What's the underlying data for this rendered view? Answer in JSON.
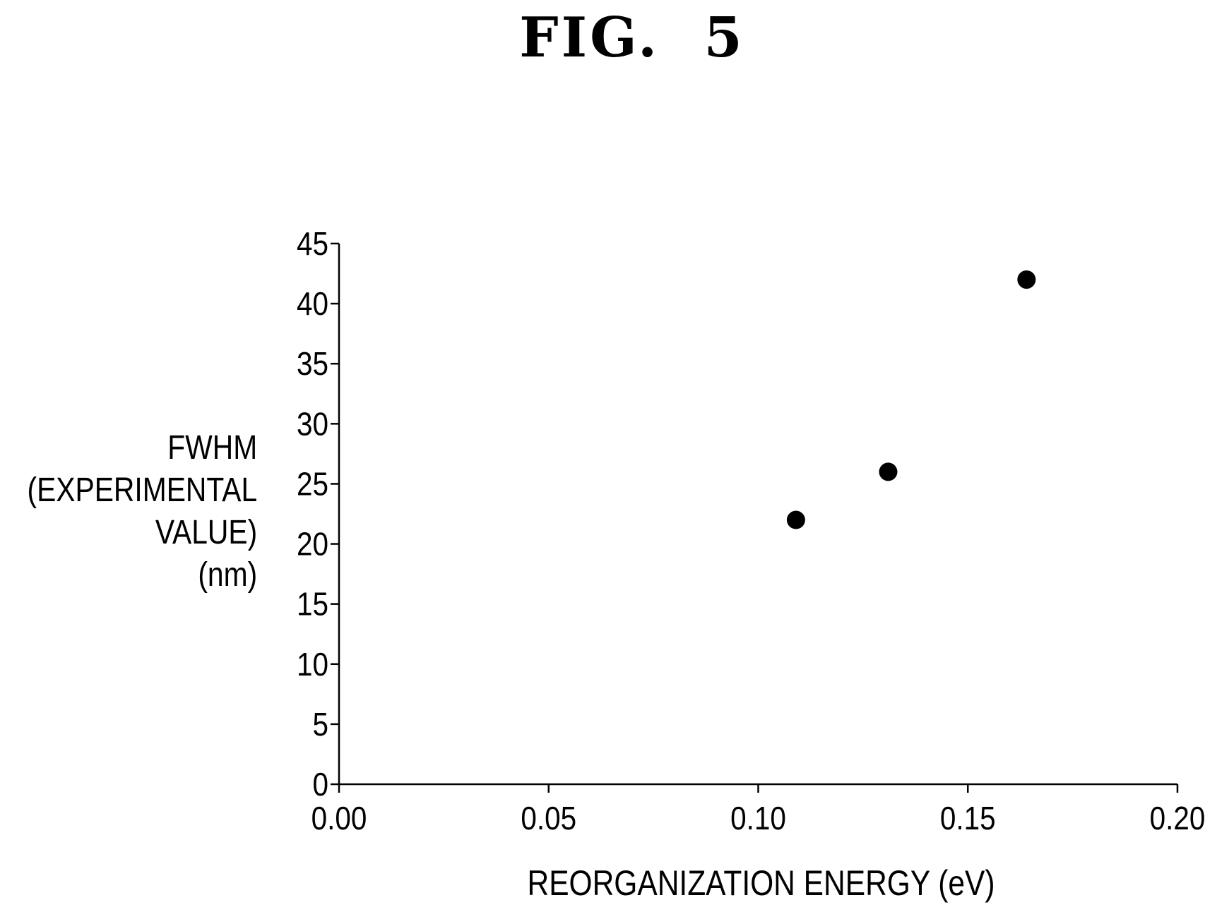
{
  "figure": {
    "title": "FIG.  5"
  },
  "chart_data": {
    "type": "scatter",
    "title": "",
    "xlabel": "REORGANIZATION ENERGY (eV)",
    "ylabel_lines": [
      "FWHM",
      "(EXPERIMENTAL",
      "VALUE)",
      "(nm)"
    ],
    "xlim": [
      0,
      0.2
    ],
    "ylim": [
      0,
      45
    ],
    "xticks": [
      "0.00",
      "0.05",
      "0.10",
      "0.15",
      "0.20"
    ],
    "yticks": [
      "0",
      "5",
      "10",
      "15",
      "20",
      "25",
      "30",
      "35",
      "40",
      "45"
    ],
    "xtick_values": [
      0,
      0.05,
      0.1,
      0.15,
      0.2
    ],
    "ytick_values": [
      0,
      5,
      10,
      15,
      20,
      25,
      30,
      35,
      40,
      45
    ],
    "grid": false,
    "marker_color": "#000000",
    "points": [
      {
        "x": 0.109,
        "y": 22
      },
      {
        "x": 0.131,
        "y": 26
      },
      {
        "x": 0.164,
        "y": 42
      }
    ]
  }
}
